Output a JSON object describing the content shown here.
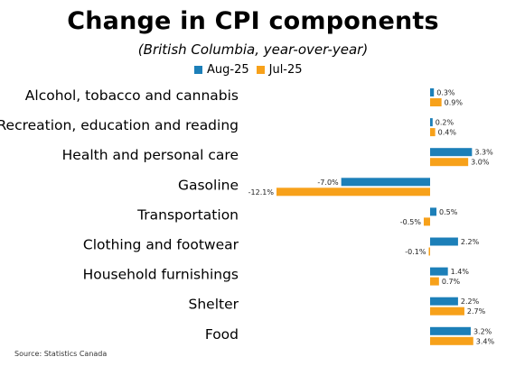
{
  "colors": {
    "aug": "#1c7fb8",
    "jul": "#f7a11a"
  },
  "chart_data": {
    "type": "bar",
    "orientation": "horizontal",
    "title": "Change in CPI components",
    "subtitle": "(British Columbia, year-over-year)",
    "categories": [
      "Alcohol, tobacco and cannabis",
      "Recreation, education and reading",
      "Health and personal care",
      "Gasoline",
      "Transportation",
      "Clothing and footwear",
      "Household furnishings",
      "Shelter",
      "Food"
    ],
    "series": [
      {
        "name": "Aug-25",
        "values": [
          0.3,
          0.2,
          3.3,
          -7.0,
          0.5,
          2.2,
          1.4,
          2.2,
          3.2
        ]
      },
      {
        "name": "Jul-25",
        "values": [
          0.9,
          0.4,
          3.0,
          -12.1,
          -0.5,
          -0.1,
          0.7,
          2.7,
          3.4
        ]
      }
    ],
    "xlim": [
      -12.1,
      3.4
    ],
    "legend_position": "top",
    "grid": false,
    "data_label_format": "percent_one_decimal"
  },
  "source": "Source: Statistics Canada"
}
